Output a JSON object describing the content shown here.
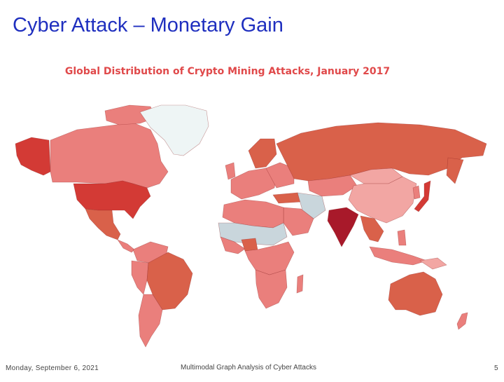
{
  "slide": {
    "title": "Cyber Attack – Monetary Gain",
    "footer_date": "Monday, September 6, 2021",
    "footer_center": "Multimodal Graph Analysis of Cyber Attacks",
    "page_number": "5"
  },
  "map": {
    "title": "Global Distribution of Crypto Mining Attacks, January 2017",
    "colors": {
      "very_high": "#a8192a",
      "high": "#d33a35",
      "medium": "#d9614a",
      "low": "#ea7f7c",
      "very_low": "#f2a6a3",
      "no_data": "#c9d6dc",
      "greenland": "#eef5f5"
    }
  }
}
